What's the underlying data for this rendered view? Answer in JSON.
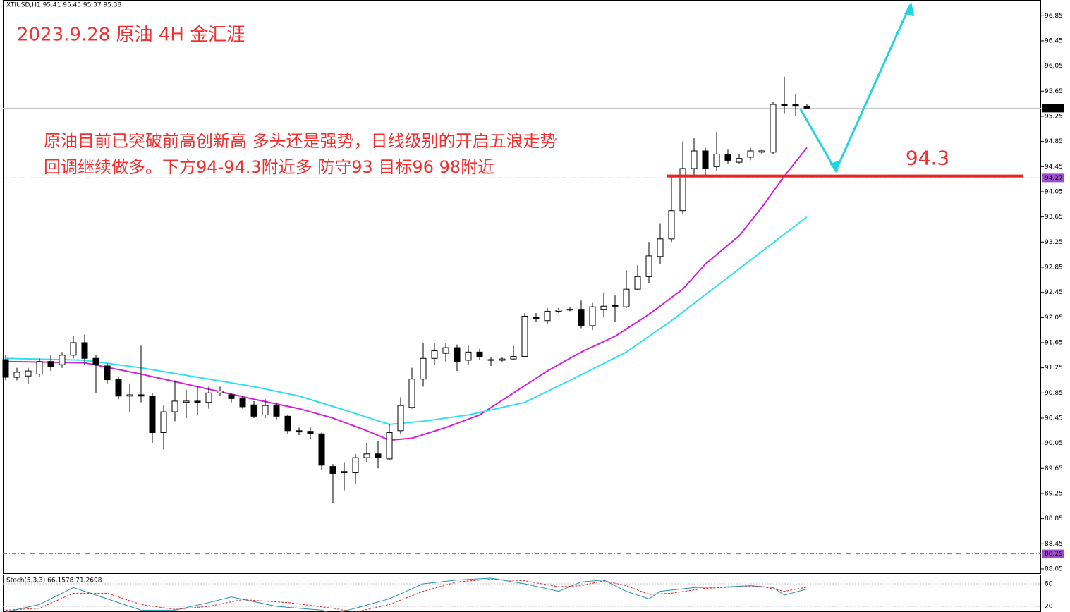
{
  "chart_data": {
    "type": "candlestick",
    "symbol_header": "XTIUSD,H1  95.41 95.45 95.37 95.38",
    "title": "2023.9.28 原油 4H 金汇涯",
    "annotations": [
      "原油目前已突破前高创新高 多头还是强势，日线级别的开启五浪走势",
      "回调继续做多。下方94-94.3附近多 防守93 目标96 98附近"
    ],
    "text_color": "#f03030",
    "level": 94.3,
    "level_color": "#ee2222",
    "open": [
      91.38,
      91.1,
      91.12,
      91.15,
      91.35,
      91.3,
      91.45,
      91.65,
      91.4,
      91.28,
      91.06,
      90.8,
      90.82,
      90.8,
      90.22,
      90.55,
      90.7,
      90.72,
      90.7,
      90.85,
      90.82,
      90.76,
      90.66,
      90.5,
      90.65,
      90.48,
      90.25,
      90.24,
      90.2,
      89.68,
      89.58,
      89.58,
      89.82,
      89.88,
      89.8,
      90.25,
      90.62,
      91.07,
      91.4,
      91.48,
      91.57,
      91.37,
      91.5,
      91.38,
      91.37,
      91.39,
      91.43,
      92.05,
      92.0,
      92.15,
      92.17,
      92.18,
      91.92,
      92.18,
      92.23,
      92.22,
      92.5,
      92.7,
      93.02,
      93.3,
      93.75,
      94.42,
      94.7,
      94.45,
      94.65,
      94.52,
      94.6,
      94.68,
      94.68,
      95.44,
      95.44,
      95.41
    ],
    "high": [
      91.45,
      91.25,
      91.25,
      91.4,
      91.45,
      91.5,
      91.75,
      91.78,
      91.45,
      91.32,
      91.1,
      91.0,
      91.6,
      90.85,
      90.65,
      91.05,
      90.9,
      90.95,
      90.95,
      90.95,
      90.85,
      90.8,
      90.72,
      90.75,
      90.7,
      90.5,
      90.3,
      90.3,
      90.22,
      89.72,
      89.75,
      89.88,
      90.05,
      90.08,
      90.35,
      90.78,
      91.25,
      91.65,
      91.65,
      91.65,
      91.62,
      91.6,
      91.55,
      91.42,
      91.42,
      91.6,
      92.12,
      92.12,
      92.2,
      92.2,
      92.22,
      92.32,
      92.28,
      92.45,
      92.4,
      92.8,
      92.88,
      93.25,
      93.55,
      94.28,
      94.85,
      94.9,
      94.75,
      95.0,
      94.72,
      94.65,
      94.75,
      94.72,
      95.48,
      95.88,
      95.6,
      95.45
    ],
    "low": [
      91.05,
      91.05,
      91.0,
      91.1,
      91.2,
      91.25,
      91.4,
      91.3,
      90.85,
      91.0,
      90.75,
      90.55,
      90.7,
      90.05,
      89.95,
      90.4,
      90.45,
      90.5,
      90.6,
      90.8,
      90.7,
      90.6,
      90.45,
      90.45,
      90.42,
      90.2,
      90.18,
      90.12,
      89.62,
      89.1,
      89.3,
      89.4,
      89.75,
      89.65,
      89.78,
      90.2,
      90.6,
      90.95,
      91.3,
      91.35,
      91.2,
      91.3,
      91.38,
      91.28,
      91.35,
      91.38,
      91.42,
      91.98,
      91.95,
      92.12,
      92.15,
      91.88,
      91.85,
      92.05,
      91.98,
      92.2,
      92.48,
      92.6,
      92.9,
      93.25,
      93.7,
      94.3,
      94.28,
      94.38,
      94.5,
      94.5,
      94.55,
      94.65,
      94.65,
      95.3,
      95.25,
      95.37
    ],
    "close": [
      91.1,
      91.18,
      91.2,
      91.35,
      91.27,
      91.45,
      91.65,
      91.4,
      91.3,
      91.06,
      90.8,
      90.82,
      90.8,
      90.22,
      90.55,
      90.72,
      90.72,
      90.7,
      90.85,
      90.88,
      90.76,
      90.63,
      90.48,
      90.65,
      90.48,
      90.25,
      90.23,
      90.2,
      89.7,
      89.57,
      89.6,
      89.82,
      89.88,
      89.82,
      90.22,
      90.65,
      91.07,
      91.4,
      91.52,
      91.57,
      91.35,
      91.5,
      91.42,
      91.37,
      91.39,
      91.43,
      92.07,
      92.03,
      92.15,
      92.17,
      92.18,
      91.92,
      92.22,
      92.23,
      92.24,
      92.5,
      92.7,
      93.03,
      93.3,
      93.75,
      94.42,
      94.7,
      94.42,
      94.65,
      94.55,
      94.58,
      94.7,
      94.7,
      95.44,
      95.42,
      95.41,
      95.38
    ],
    "ylim": [
      87.96,
      97.1
    ],
    "yticks": [
      96.85,
      96.45,
      96.05,
      95.65,
      95.25,
      94.85,
      94.45,
      94.05,
      93.65,
      93.25,
      92.85,
      92.45,
      92.05,
      91.65,
      91.25,
      90.85,
      90.45,
      90.05,
      89.65,
      89.25,
      88.85,
      88.45,
      88.05
    ],
    "price_markers": [
      {
        "value": 95.38,
        "color": "#000000",
        "line": "#c0c0c0"
      },
      {
        "value": 94.27,
        "color": "#9b4dca",
        "line": "#9b4dca"
      },
      {
        "value": 88.29,
        "color": "#9b4dca",
        "line": "#9b4dca"
      }
    ],
    "ma_lines": [
      {
        "color": "#d020d8",
        "x": [
          0,
          7,
          12,
          17,
          22,
          26,
          29,
          32,
          34,
          36,
          39,
          42,
          45,
          48,
          51,
          54,
          57,
          60,
          62,
          65,
          67,
          69,
          71
        ],
        "values": [
          91.35,
          91.33,
          91.15,
          90.95,
          90.75,
          90.6,
          90.45,
          90.25,
          90.1,
          90.13,
          90.3,
          90.5,
          90.85,
          91.2,
          91.5,
          91.75,
          92.1,
          92.5,
          92.9,
          93.35,
          93.8,
          94.3,
          94.75
        ]
      },
      {
        "color": "#30e0f0",
        "x": [
          0,
          7,
          12,
          17,
          22,
          26,
          30,
          34,
          37,
          41,
          46,
          50,
          55,
          59,
          63,
          67,
          71
        ],
        "values": [
          91.4,
          91.37,
          91.25,
          91.1,
          90.95,
          90.8,
          90.58,
          90.35,
          90.4,
          90.5,
          90.7,
          91.05,
          91.5,
          92.0,
          92.55,
          93.1,
          93.65
        ]
      }
    ],
    "oscillator": {
      "title": "Stoch(5,3,3) 66.1578 71.2698",
      "ylim": [
        0,
        100
      ],
      "yticks": [
        80,
        20
      ],
      "series": [
        {
          "color": "#2090b0",
          "dashed": false,
          "x": [
            0,
            3,
            6,
            9,
            12,
            15,
            18,
            20,
            24,
            28,
            29,
            31,
            34,
            37,
            40,
            43,
            46,
            49,
            51,
            53,
            55,
            57,
            58,
            61,
            64,
            66,
            68,
            69,
            71
          ],
          "values": [
            5,
            25,
            70,
            40,
            10,
            10,
            30,
            45,
            20,
            10,
            0,
            15,
            40,
            80,
            90,
            95,
            80,
            60,
            85,
            90,
            60,
            40,
            60,
            70,
            72,
            75,
            70,
            50,
            66
          ]
        },
        {
          "color": "#e02020",
          "dashed": true,
          "x": [
            0,
            3,
            6,
            9,
            12,
            15,
            18,
            21,
            25,
            29,
            31,
            34,
            37,
            40,
            43,
            46,
            49,
            51,
            53,
            55,
            57,
            59,
            62,
            65,
            67,
            69,
            71
          ],
          "values": [
            10,
            15,
            55,
            55,
            25,
            12,
            20,
            38,
            30,
            15,
            5,
            25,
            60,
            85,
            92,
            88,
            72,
            75,
            88,
            75,
            52,
            55,
            68,
            72,
            73,
            60,
            71
          ]
        }
      ]
    }
  }
}
